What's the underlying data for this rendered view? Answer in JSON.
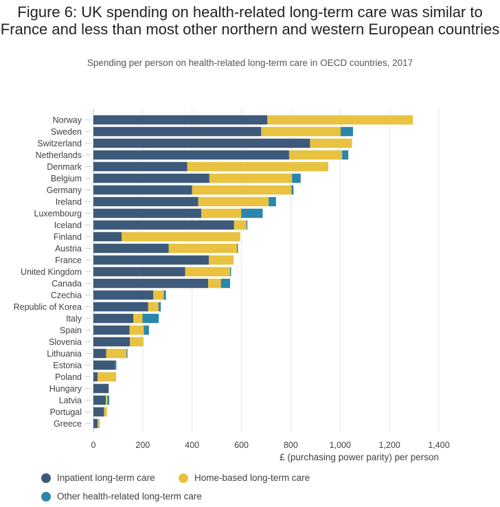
{
  "chart_data": {
    "type": "bar",
    "orientation": "horizontal",
    "stacked": true,
    "title": "Figure 6: UK spending on health-related long-term care was similar to France and less than most other northern and western European countries",
    "subtitle": "Spending per person on health-related long-term care in OECD countries, 2017",
    "xlabel": "£ (purchasing power parity) per person",
    "ylabel": "",
    "xlim": [
      0,
      1400
    ],
    "xticks": [
      0,
      200,
      400,
      600,
      800,
      1000,
      1200,
      1400
    ],
    "xtick_labels": [
      "0",
      "200",
      "400",
      "600",
      "800",
      "1,000",
      "1,200",
      "1,400"
    ],
    "grid": "vertical",
    "legend_position": "bottom",
    "categories": [
      "Norway",
      "Sweden",
      "Switzerland",
      "Netherlands",
      "Denmark",
      "Belgium",
      "Germany",
      "Ireland",
      "Luxembourg",
      "Iceland",
      "Finland",
      "Austria",
      "France",
      "United Kingdom",
      "Canada",
      "Czechia",
      "Republic of Korea",
      "Italy",
      "Spain",
      "Slovenia",
      "Lithuania",
      "Estonia",
      "Poland",
      "Hungary",
      "Latvia",
      "Portugal",
      "Greece"
    ],
    "series": [
      {
        "name": "Inpatient long-term care",
        "color": "#3d5a7a",
        "values": [
          705,
          680,
          878,
          793,
          380,
          470,
          400,
          425,
          437,
          570,
          115,
          305,
          468,
          372,
          465,
          243,
          222,
          162,
          147,
          148,
          52,
          88,
          17,
          62,
          50,
          43,
          17
        ]
      },
      {
        "name": "Home-based long-term care",
        "color": "#e8c240",
        "values": [
          590,
          322,
          170,
          215,
          572,
          335,
          403,
          285,
          162,
          50,
          480,
          277,
          100,
          182,
          52,
          42,
          42,
          37,
          57,
          55,
          82,
          0,
          75,
          0,
          7,
          12,
          5
        ]
      },
      {
        "name": "Other health-related long-term care",
        "color": "#2a86ab",
        "values": [
          0,
          50,
          0,
          25,
          0,
          35,
          8,
          30,
          87,
          4,
          0,
          4,
          0,
          4,
          37,
          9,
          9,
          66,
          21,
          0,
          4,
          5,
          0,
          0,
          7,
          0,
          2
        ]
      }
    ]
  }
}
